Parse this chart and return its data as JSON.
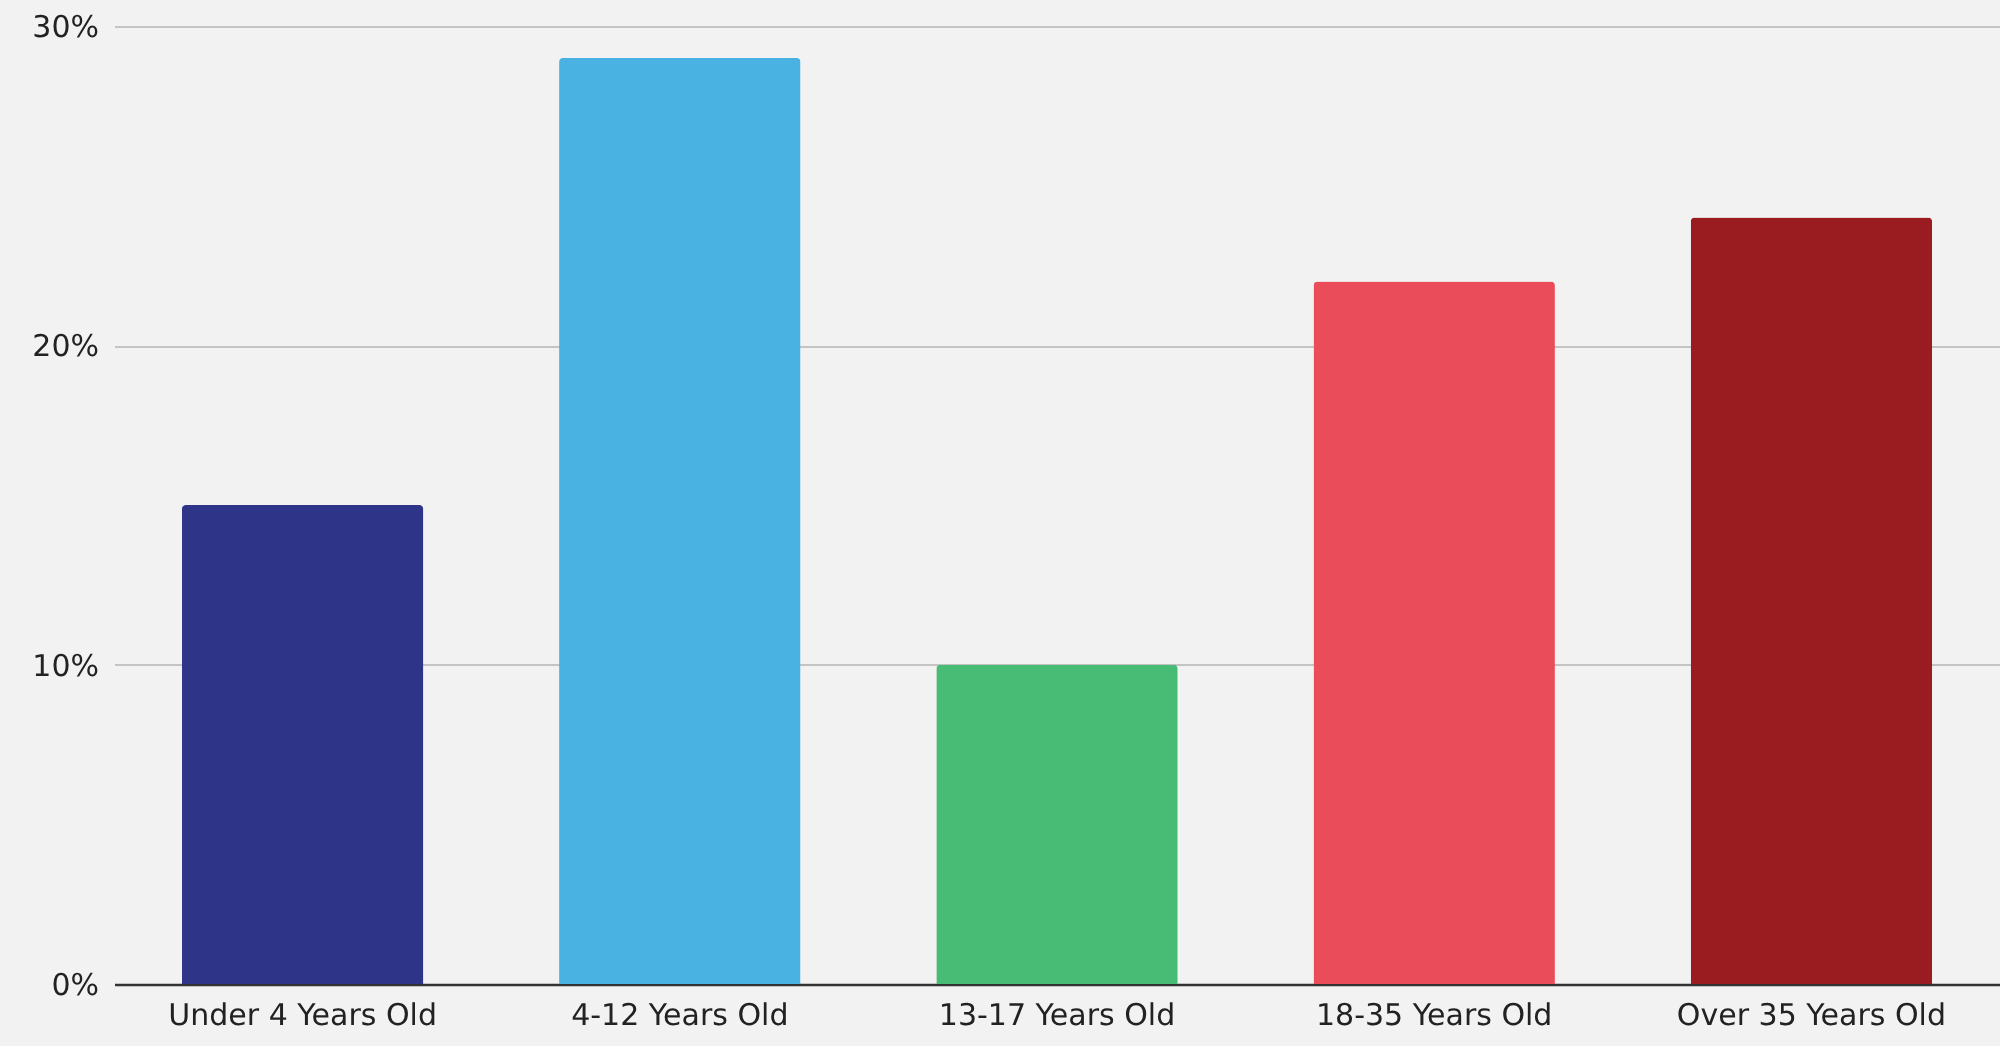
{
  "chart_data": {
    "type": "bar",
    "categories": [
      "Under 4 Years Old",
      "4-12 Years Old",
      "13-17 Years Old",
      "18-35 Years Old",
      "Over 35 Years Old"
    ],
    "values": [
      15,
      29,
      10,
      22,
      24
    ],
    "colors": [
      "#2e3488",
      "#4ab1e3",
      "#48bb74",
      "#ea4c5a",
      "#9a1c20"
    ],
    "ylim": [
      0,
      30
    ],
    "yticks": [
      {
        "value": 0,
        "label": "0%"
      },
      {
        "value": 10,
        "label": "10%"
      },
      {
        "value": 20,
        "label": "20%"
      },
      {
        "value": 30,
        "label": "30%"
      }
    ],
    "grid": "y"
  }
}
